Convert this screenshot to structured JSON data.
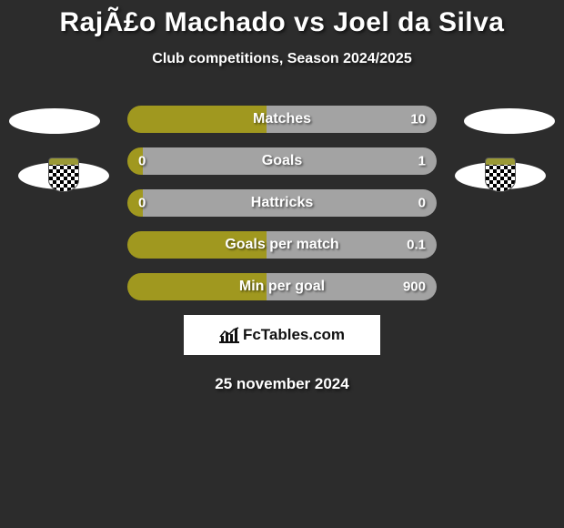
{
  "title": "RajÃ£o Machado vs Joel da Silva",
  "subtitle": "Club competitions, Season 2024/2025",
  "date": "25 november 2024",
  "logo_text": "FcTables.com",
  "colors": {
    "left_bar": "#a0981f",
    "right_bar": "#a3a3a3",
    "background": "#2c2c2c",
    "text": "#ffffff",
    "avatar_fill": "#ffffff"
  },
  "stats": [
    {
      "label": "Matches",
      "left_val": "",
      "right_val": "10",
      "left_pct": 45,
      "right_pct": 55
    },
    {
      "label": "Goals",
      "left_val": "0",
      "right_val": "1",
      "left_pct": 5,
      "right_pct": 95
    },
    {
      "label": "Hattricks",
      "left_val": "0",
      "right_val": "0",
      "left_pct": 5,
      "right_pct": 95
    },
    {
      "label": "Goals per match",
      "left_val": "",
      "right_val": "0.1",
      "left_pct": 45,
      "right_pct": 55
    },
    {
      "label": "Min per goal",
      "left_val": "",
      "right_val": "900",
      "left_pct": 45,
      "right_pct": 55
    }
  ]
}
